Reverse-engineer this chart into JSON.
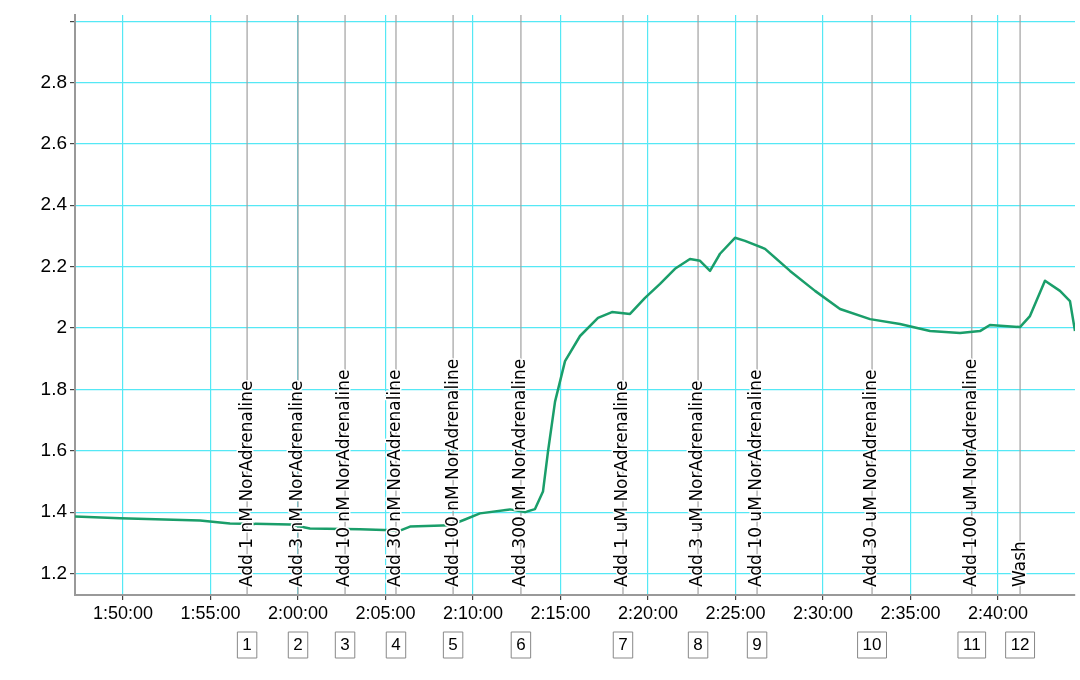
{
  "chart_data": {
    "type": "line",
    "x": [
      1.7876,
      1.8305,
      1.9067,
      1.9352,
      1.9924,
      2.0114,
      2.059,
      2.0971,
      2.1067,
      2.1448,
      2.159,
      2.1733,
      2.2019,
      2.2162,
      2.2257,
      2.2333,
      2.2381,
      2.2448,
      2.2543,
      2.2686,
      2.2857,
      2.299,
      2.3162,
      2.3305,
      2.3448,
      2.359,
      2.3733,
      2.3829,
      2.3924,
      2.4019,
      2.4162,
      2.4257,
      2.4448,
      2.4686,
      2.4924,
      2.5162,
      2.5448,
      2.5733,
      2.6019,
      2.6305,
      2.6495,
      2.659,
      2.6876,
      2.6971,
      2.7114,
      2.7257,
      2.7352,
      2.74
    ],
    "series": [
      {
        "color": "#1a9e6a",
        "values": [
          1.386,
          1.38,
          1.373,
          1.363,
          1.36,
          1.347,
          1.344,
          1.34,
          1.353,
          1.357,
          1.376,
          1.396,
          1.409,
          1.4,
          1.41,
          1.467,
          1.598,
          1.76,
          1.892,
          1.974,
          2.033,
          2.052,
          2.046,
          2.098,
          2.144,
          2.193,
          2.225,
          2.219,
          2.186,
          2.242,
          2.294,
          2.284,
          2.258,
          2.186,
          2.121,
          2.062,
          2.029,
          2.013,
          1.99,
          1.984,
          1.99,
          2.01,
          2.003,
          2.039,
          2.154,
          2.121,
          2.088,
          1.99
        ]
      }
    ],
    "xlim": [
      1.7876,
      2.74
    ],
    "xticks": [
      {
        "value": 1.833333,
        "label": "1:50:00"
      },
      {
        "value": 1.916667,
        "label": "1:55:00"
      },
      {
        "value": 2,
        "label": "2:00:00"
      },
      {
        "value": 2.083333,
        "label": "2:05:00"
      },
      {
        "value": 2.166667,
        "label": "2:10:00"
      },
      {
        "value": 2.25,
        "label": "2:15:00"
      },
      {
        "value": 2.333333,
        "label": "2:20:00"
      },
      {
        "value": 2.416667,
        "label": "2:25:00"
      },
      {
        "value": 2.5,
        "label": "2:30:00"
      },
      {
        "value": 2.583333,
        "label": "2:35:00"
      },
      {
        "value": 2.666667,
        "label": "2:40:00"
      }
    ],
    "ylim": [
      1.13,
      3.02
    ],
    "yticks": [
      1.2,
      1.4,
      1.6,
      1.8,
      2.0,
      2.2,
      2.4,
      2.6,
      2.8,
      {
        "value": 3,
        "label": null
      }
    ],
    "grid": true,
    "ref_lines": [
      {
        "axis": "x",
        "value": 1.9515,
        "label": "Add 1 nM NorAdrenaline"
      },
      {
        "axis": "x",
        "value": 2.0,
        "label": "Add 3 nM NorAdrenaline"
      },
      {
        "axis": "x",
        "value": 2.0448,
        "label": "Add 10 nM NorAdrenaline"
      },
      {
        "axis": "x",
        "value": 2.0933,
        "label": "Add 30 nM NorAdrenaline"
      },
      {
        "axis": "x",
        "value": 2.1477,
        "label": "Add 100 nM NorAdrenaline"
      },
      {
        "axis": "x",
        "value": 2.2123,
        "label": "Add 300 nM NorAdrenaline"
      },
      {
        "axis": "x",
        "value": 2.3095,
        "label": "Add 1 uM NorAdrenaline"
      },
      {
        "axis": "x",
        "value": 2.381,
        "label": "Add 3 uM NorAdrenaline"
      },
      {
        "axis": "x",
        "value": 2.4372,
        "label": "Add 10 uM NorAdrenaline"
      },
      {
        "axis": "x",
        "value": 2.5467,
        "label": "Add 30 uM NorAdrenaline"
      },
      {
        "axis": "x",
        "value": 2.6417,
        "label": "Add 100 uM NorAdrenaline"
      },
      {
        "axis": "x",
        "value": 2.6877,
        "label": "Wash"
      }
    ],
    "annotations": [
      "1",
      "2",
      "3",
      "4",
      "5",
      "6",
      "7",
      "8",
      "9",
      "10",
      "11",
      "12"
    ]
  }
}
